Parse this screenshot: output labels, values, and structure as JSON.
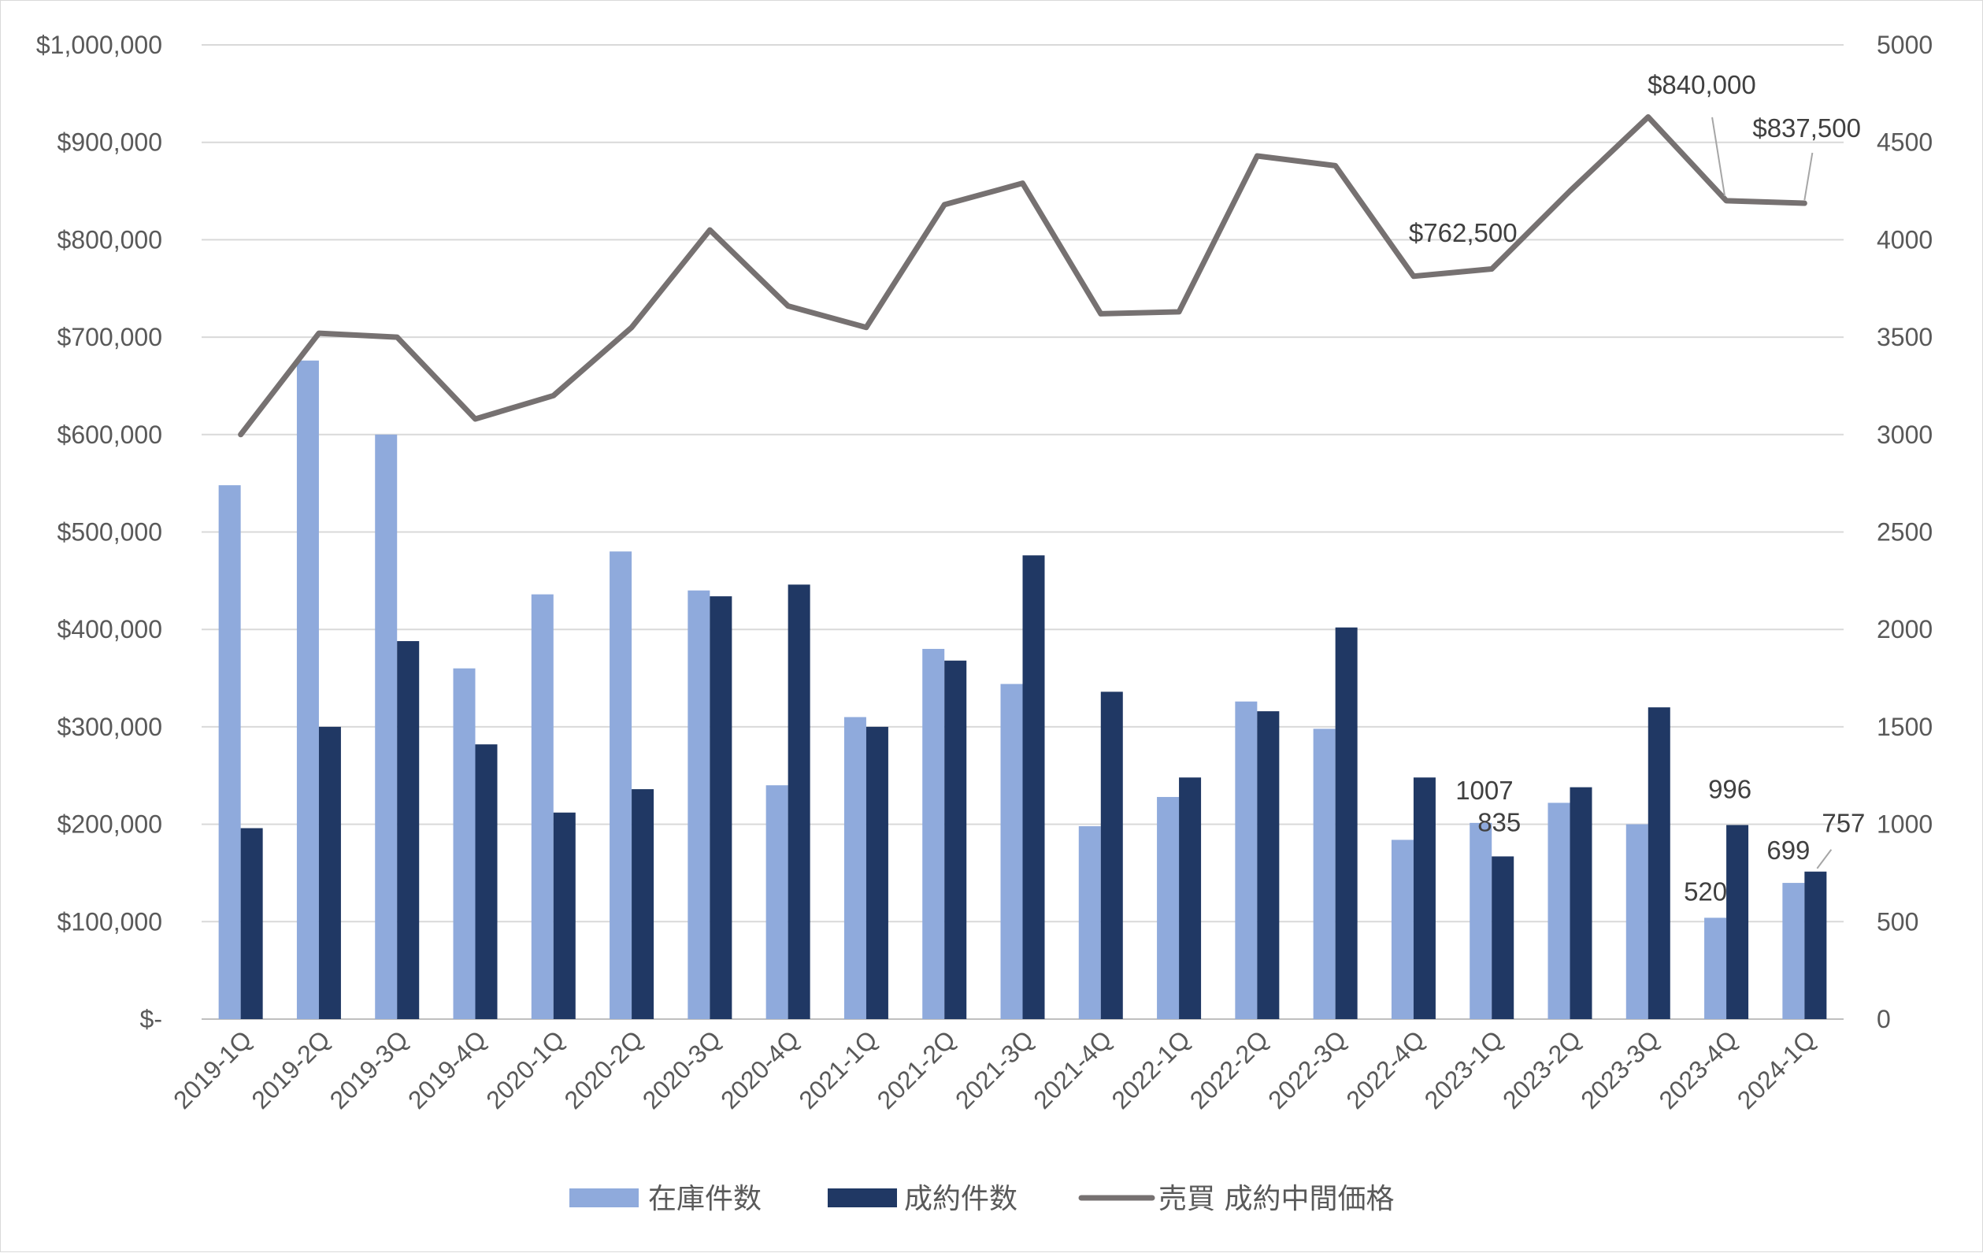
{
  "chart_data": {
    "type": "bar",
    "categories": [
      "2019-1Q",
      "2019-2Q",
      "2019-3Q",
      "2019-4Q",
      "2020-1Q",
      "2020-2Q",
      "2020-3Q",
      "2020-4Q",
      "2021-1Q",
      "2021-2Q",
      "2021-3Q",
      "2021-4Q",
      "2022-1Q",
      "2022-2Q",
      "2022-3Q",
      "2022-4Q",
      "2023-1Q",
      "2023-2Q",
      "2023-3Q",
      "2023-4Q",
      "2024-1Q"
    ],
    "series": [
      {
        "name": "在庫件数",
        "type": "bar",
        "axis": "right",
        "color": "#8faadc",
        "values": [
          2740,
          3380,
          3000,
          1800,
          2180,
          2400,
          2200,
          1200,
          1550,
          1900,
          1720,
          990,
          1140,
          1630,
          1490,
          920,
          1007,
          1110,
          1000,
          520,
          699
        ]
      },
      {
        "name": "成約件数",
        "type": "bar",
        "axis": "right",
        "color": "#203864",
        "values": [
          980,
          1500,
          1940,
          1410,
          1060,
          1180,
          2170,
          2230,
          1500,
          1840,
          2380,
          1680,
          1240,
          1580,
          2010,
          1240,
          835,
          1190,
          1600,
          996,
          757
        ]
      },
      {
        "name": "売買 成約中間価格",
        "type": "line",
        "axis": "left",
        "color": "#767171",
        "values": [
          600000,
          704000,
          700000,
          616000,
          640000,
          710000,
          810000,
          732000,
          710000,
          836000,
          858000,
          724000,
          726000,
          886000,
          876000,
          762500,
          770000,
          850000,
          926000,
          840000,
          837500
        ]
      }
    ],
    "y_left": {
      "range": [
        0,
        1000000
      ],
      "ticks": [
        0,
        100000,
        200000,
        300000,
        400000,
        500000,
        600000,
        700000,
        800000,
        900000,
        1000000
      ],
      "tick_labels": [
        "$-",
        "$100,000",
        "$200,000",
        "$300,000",
        "$400,000",
        "$500,000",
        "$600,000",
        "$700,000",
        "$800,000",
        "$900,000",
        "$1,000,000"
      ]
    },
    "y_right": {
      "range": [
        0,
        5000
      ],
      "ticks": [
        0,
        500,
        1000,
        1500,
        2000,
        2500,
        3000,
        3500,
        4000,
        4500,
        5000
      ],
      "tick_labels": [
        "0",
        "500",
        "1000",
        "1500",
        "2000",
        "2500",
        "3000",
        "3500",
        "4000",
        "4500",
        "5000"
      ]
    },
    "data_labels": [
      {
        "series": "在庫件数",
        "category": "2023-1Q",
        "text": "1007"
      },
      {
        "series": "成約件数",
        "category": "2023-1Q",
        "text": "835"
      },
      {
        "series": "在庫件数",
        "category": "2023-4Q",
        "text": "520"
      },
      {
        "series": "成約件数",
        "category": "2023-4Q",
        "text": "996"
      },
      {
        "series": "在庫件数",
        "category": "2024-1Q",
        "text": "699"
      },
      {
        "series": "成約件数",
        "category": "2024-1Q",
        "text": "757"
      },
      {
        "series": "売買 成約中間価格",
        "category": "2022-4Q",
        "text": "$762,500"
      },
      {
        "series": "売買 成約中間価格",
        "category": "2023-4Q",
        "text": "$840,000"
      },
      {
        "series": "売買 成約中間価格",
        "category": "2024-1Q",
        "text": "$837,500"
      }
    ],
    "grid": true,
    "legend": "bottom",
    "title": "",
    "xlabel": "",
    "ylabel": ""
  }
}
